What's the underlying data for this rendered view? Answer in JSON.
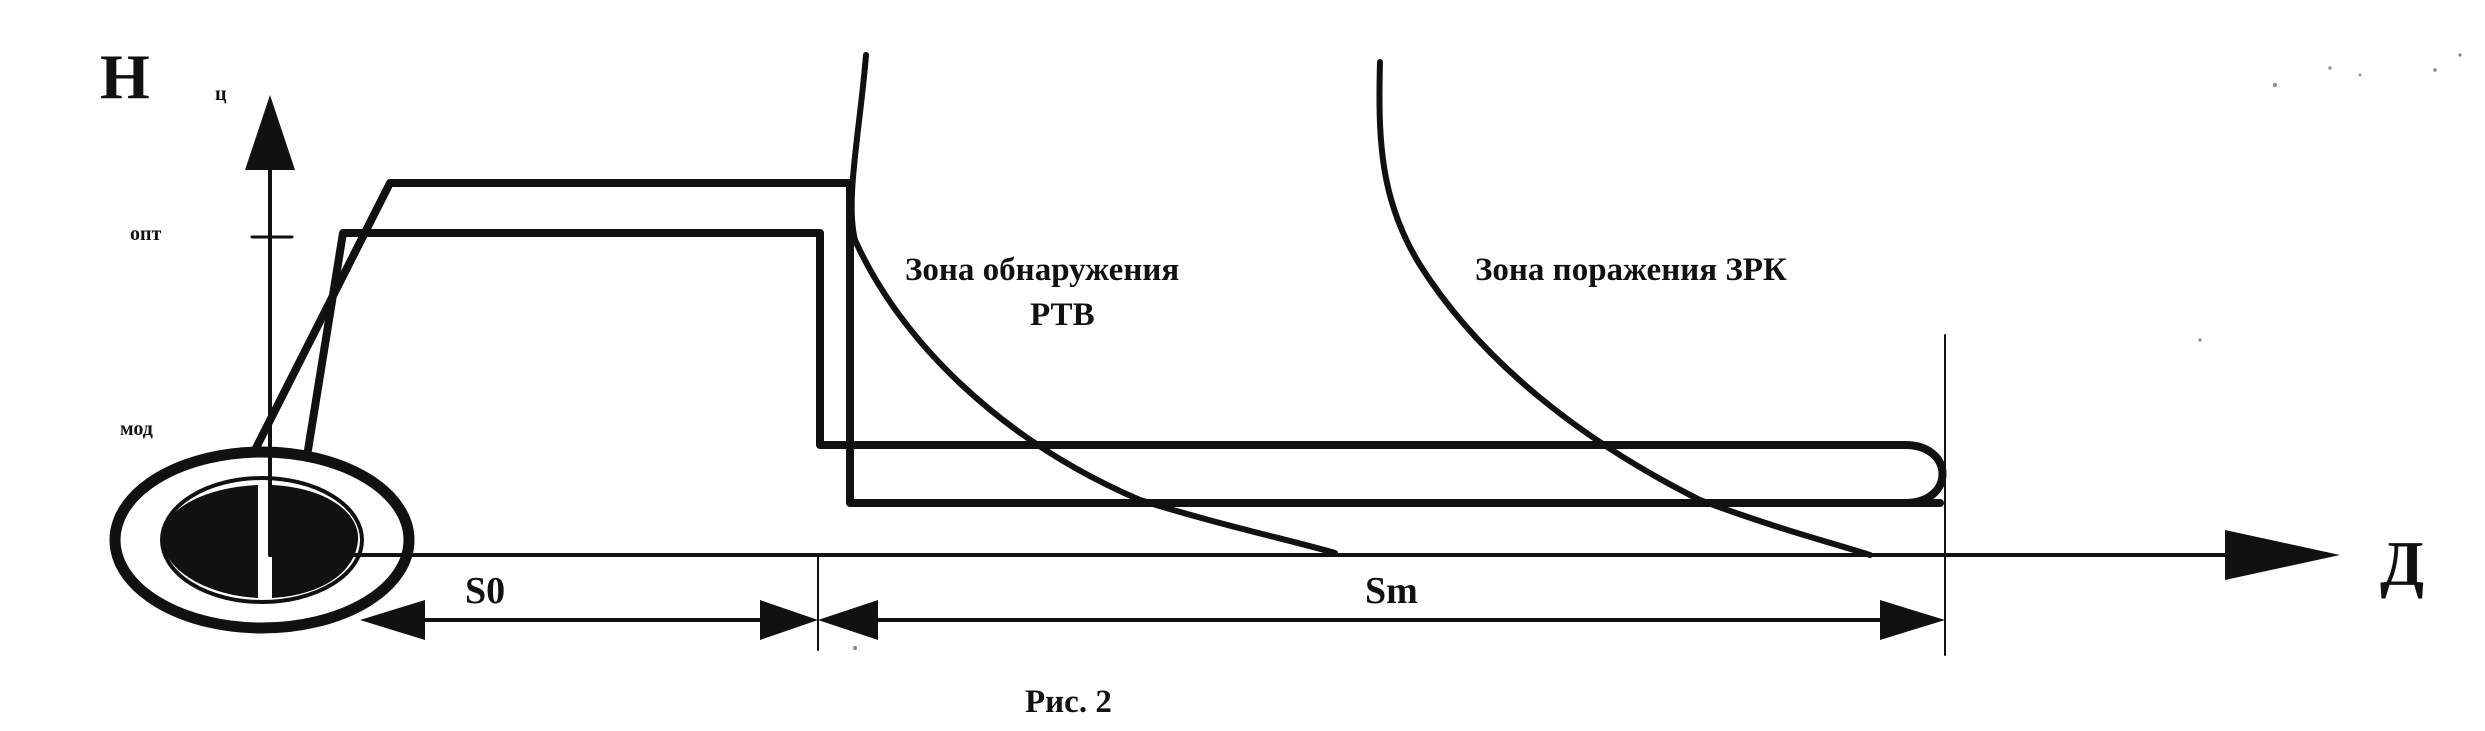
{
  "axes": {
    "y_label": "Н",
    "y_subscript": "ц",
    "x_label": "Д",
    "y_tick_high": "опт",
    "y_tick_low": "мод"
  },
  "zones": {
    "detection_line1": "Зона обнаружения",
    "detection_line2": "РТВ",
    "engagement": "Зона поражения ЗРК"
  },
  "distances": {
    "s0": "S0",
    "sm": "Sm"
  },
  "caption": "Рис. 2"
}
